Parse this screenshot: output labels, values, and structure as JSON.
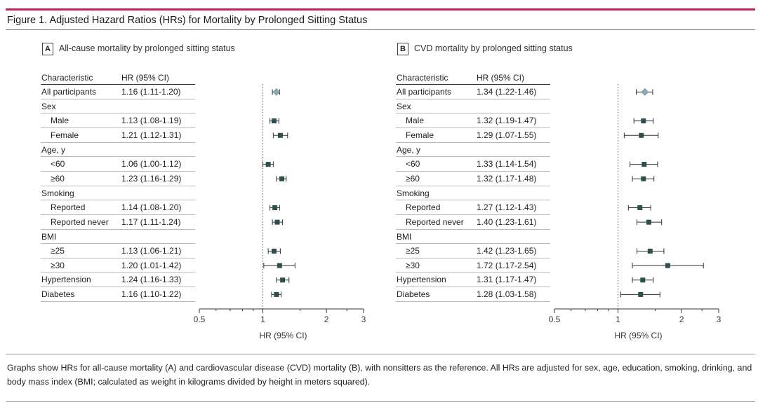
{
  "figure": {
    "title": "Figure 1. Adjusted Hazard Ratios (HRs) for Mortality by Prolonged Sitting Status",
    "footnote": "Graphs show HRs for all-cause mortality (A) and cardiovascular disease (CVD) mortality (B), with nonsitters as the reference. All HRs are adjusted for sex, age, education, smoking, drinking, and body mass index (BMI; calculated as weight in kilograms divided by height in meters squared)."
  },
  "colors": {
    "accent": "#c8215f",
    "marker": "#2f4f4f",
    "summary_marker": "#8fa9b3"
  },
  "chart_data": [
    {
      "type": "forest",
      "panel_label": "A",
      "title": "All-cause mortality by prolonged sitting status",
      "col_characteristic": "Characteristic",
      "col_hr": "HR (95% CI)",
      "xlabel": "HR (95% CI)",
      "x_scale": "log",
      "xlim": [
        0.5,
        3
      ],
      "ticks": [
        0.5,
        1,
        2,
        3
      ],
      "tick_labels": [
        "0.5",
        "1",
        "2",
        "3"
      ],
      "reference_line": 1,
      "rows": [
        {
          "label": "All participants",
          "ci_text": "1.16 (1.11-1.20)",
          "hr": 1.16,
          "lo": 1.11,
          "hi": 1.2,
          "summary": true
        },
        {
          "label": "Sex",
          "header": true
        },
        {
          "label": "Male",
          "ci_text": "1.13 (1.08-1.19)",
          "hr": 1.13,
          "lo": 1.08,
          "hi": 1.19,
          "indent": true
        },
        {
          "label": "Female",
          "ci_text": "1.21 (1.12-1.31)",
          "hr": 1.21,
          "lo": 1.12,
          "hi": 1.31,
          "indent": true
        },
        {
          "label": "Age, y",
          "header": true
        },
        {
          "label": "<60",
          "ci_text": "1.06 (1.00-1.12)",
          "hr": 1.06,
          "lo": 1.0,
          "hi": 1.12,
          "indent": true
        },
        {
          "label": "≥60",
          "ci_text": "1.23 (1.16-1.29)",
          "hr": 1.23,
          "lo": 1.16,
          "hi": 1.29,
          "indent": true
        },
        {
          "label": "Smoking",
          "header": true
        },
        {
          "label": "Reported",
          "ci_text": "1.14 (1.08-1.20)",
          "hr": 1.14,
          "lo": 1.08,
          "hi": 1.2,
          "indent": true
        },
        {
          "label": "Reported never",
          "ci_text": "1.17 (1.11-1.24)",
          "hr": 1.17,
          "lo": 1.11,
          "hi": 1.24,
          "indent": true
        },
        {
          "label": "BMI",
          "header": true
        },
        {
          "label": "≥25",
          "ci_text": "1.13 (1.06-1.21)",
          "hr": 1.13,
          "lo": 1.06,
          "hi": 1.21,
          "indent": true
        },
        {
          "label": "≥30",
          "ci_text": "1.20 (1.01-1.42)",
          "hr": 1.2,
          "lo": 1.01,
          "hi": 1.42,
          "indent": true
        },
        {
          "label": "Hypertension",
          "ci_text": "1.24 (1.16-1.33)",
          "hr": 1.24,
          "lo": 1.16,
          "hi": 1.33
        },
        {
          "label": "Diabetes",
          "ci_text": "1.16 (1.10-1.22)",
          "hr": 1.16,
          "lo": 1.1,
          "hi": 1.22
        }
      ]
    },
    {
      "type": "forest",
      "panel_label": "B",
      "title": "CVD mortality by prolonged sitting status",
      "col_characteristic": "Characteristic",
      "col_hr": "HR (95% CI)",
      "xlabel": "HR (95% CI)",
      "x_scale": "log",
      "xlim": [
        0.5,
        3
      ],
      "ticks": [
        0.5,
        1,
        2,
        3
      ],
      "tick_labels": [
        "0.5",
        "1",
        "2",
        "3"
      ],
      "reference_line": 1,
      "rows": [
        {
          "label": "All participants",
          "ci_text": "1.34 (1.22-1.46)",
          "hr": 1.34,
          "lo": 1.22,
          "hi": 1.46,
          "summary": true
        },
        {
          "label": "Sex",
          "header": true
        },
        {
          "label": "Male",
          "ci_text": "1.32 (1.19-1.47)",
          "hr": 1.32,
          "lo": 1.19,
          "hi": 1.47,
          "indent": true
        },
        {
          "label": "Female",
          "ci_text": "1.29 (1.07-1.55)",
          "hr": 1.29,
          "lo": 1.07,
          "hi": 1.55,
          "indent": true
        },
        {
          "label": "Age, y",
          "header": true
        },
        {
          "label": "<60",
          "ci_text": "1.33 (1.14-1.54)",
          "hr": 1.33,
          "lo": 1.14,
          "hi": 1.54,
          "indent": true
        },
        {
          "label": "≥60",
          "ci_text": "1.32 (1.17-1.48)",
          "hr": 1.32,
          "lo": 1.17,
          "hi": 1.48,
          "indent": true
        },
        {
          "label": "Smoking",
          "header": true
        },
        {
          "label": "Reported",
          "ci_text": "1.27 (1.12-1.43)",
          "hr": 1.27,
          "lo": 1.12,
          "hi": 1.43,
          "indent": true
        },
        {
          "label": "Reported never",
          "ci_text": "1.40 (1.23-1.61)",
          "hr": 1.4,
          "lo": 1.23,
          "hi": 1.61,
          "indent": true
        },
        {
          "label": "BMI",
          "header": true
        },
        {
          "label": "≥25",
          "ci_text": "1.42 (1.23-1.65)",
          "hr": 1.42,
          "lo": 1.23,
          "hi": 1.65,
          "indent": true
        },
        {
          "label": "≥30",
          "ci_text": "1.72 (1.17-2.54)",
          "hr": 1.72,
          "lo": 1.17,
          "hi": 2.54,
          "indent": true
        },
        {
          "label": "Hypertension",
          "ci_text": "1.31 (1.17-1.47)",
          "hr": 1.31,
          "lo": 1.17,
          "hi": 1.47
        },
        {
          "label": "Diabetes",
          "ci_text": "1.28 (1.03-1.58)",
          "hr": 1.28,
          "lo": 1.03,
          "hi": 1.58
        }
      ]
    }
  ]
}
